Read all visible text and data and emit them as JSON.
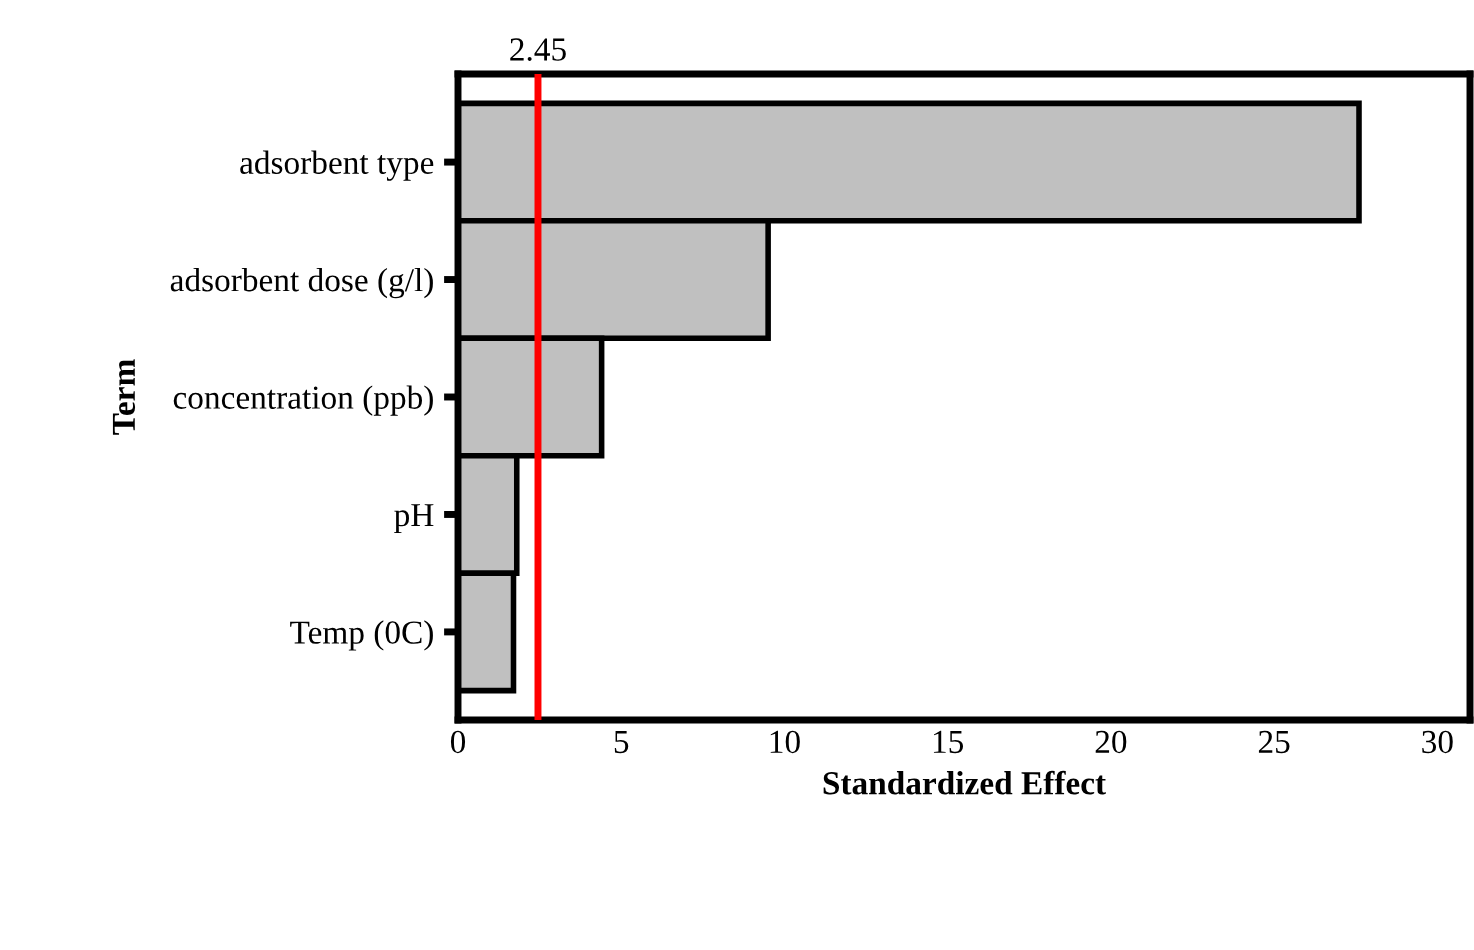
{
  "chart_data": {
    "type": "bar",
    "orientation": "horizontal",
    "categories": [
      "adsorbent type",
      "adsorbent dose (g/l)",
      "concentration (ppb)",
      "pH",
      "Temp (0C)"
    ],
    "values": [
      27.6,
      9.5,
      4.4,
      1.8,
      1.7
    ],
    "color": "#c0c0c0",
    "xlabel": "Standardized Effect",
    "ylabel": "Term",
    "xlim": [
      0,
      31
    ],
    "xticks": [
      0,
      5,
      10,
      15,
      20,
      25,
      30
    ],
    "ref_lines": [
      {
        "axis": "x",
        "value": 2.45,
        "label": "2.45",
        "color": "#ff0000"
      }
    ],
    "grid": false,
    "legend": false
  }
}
